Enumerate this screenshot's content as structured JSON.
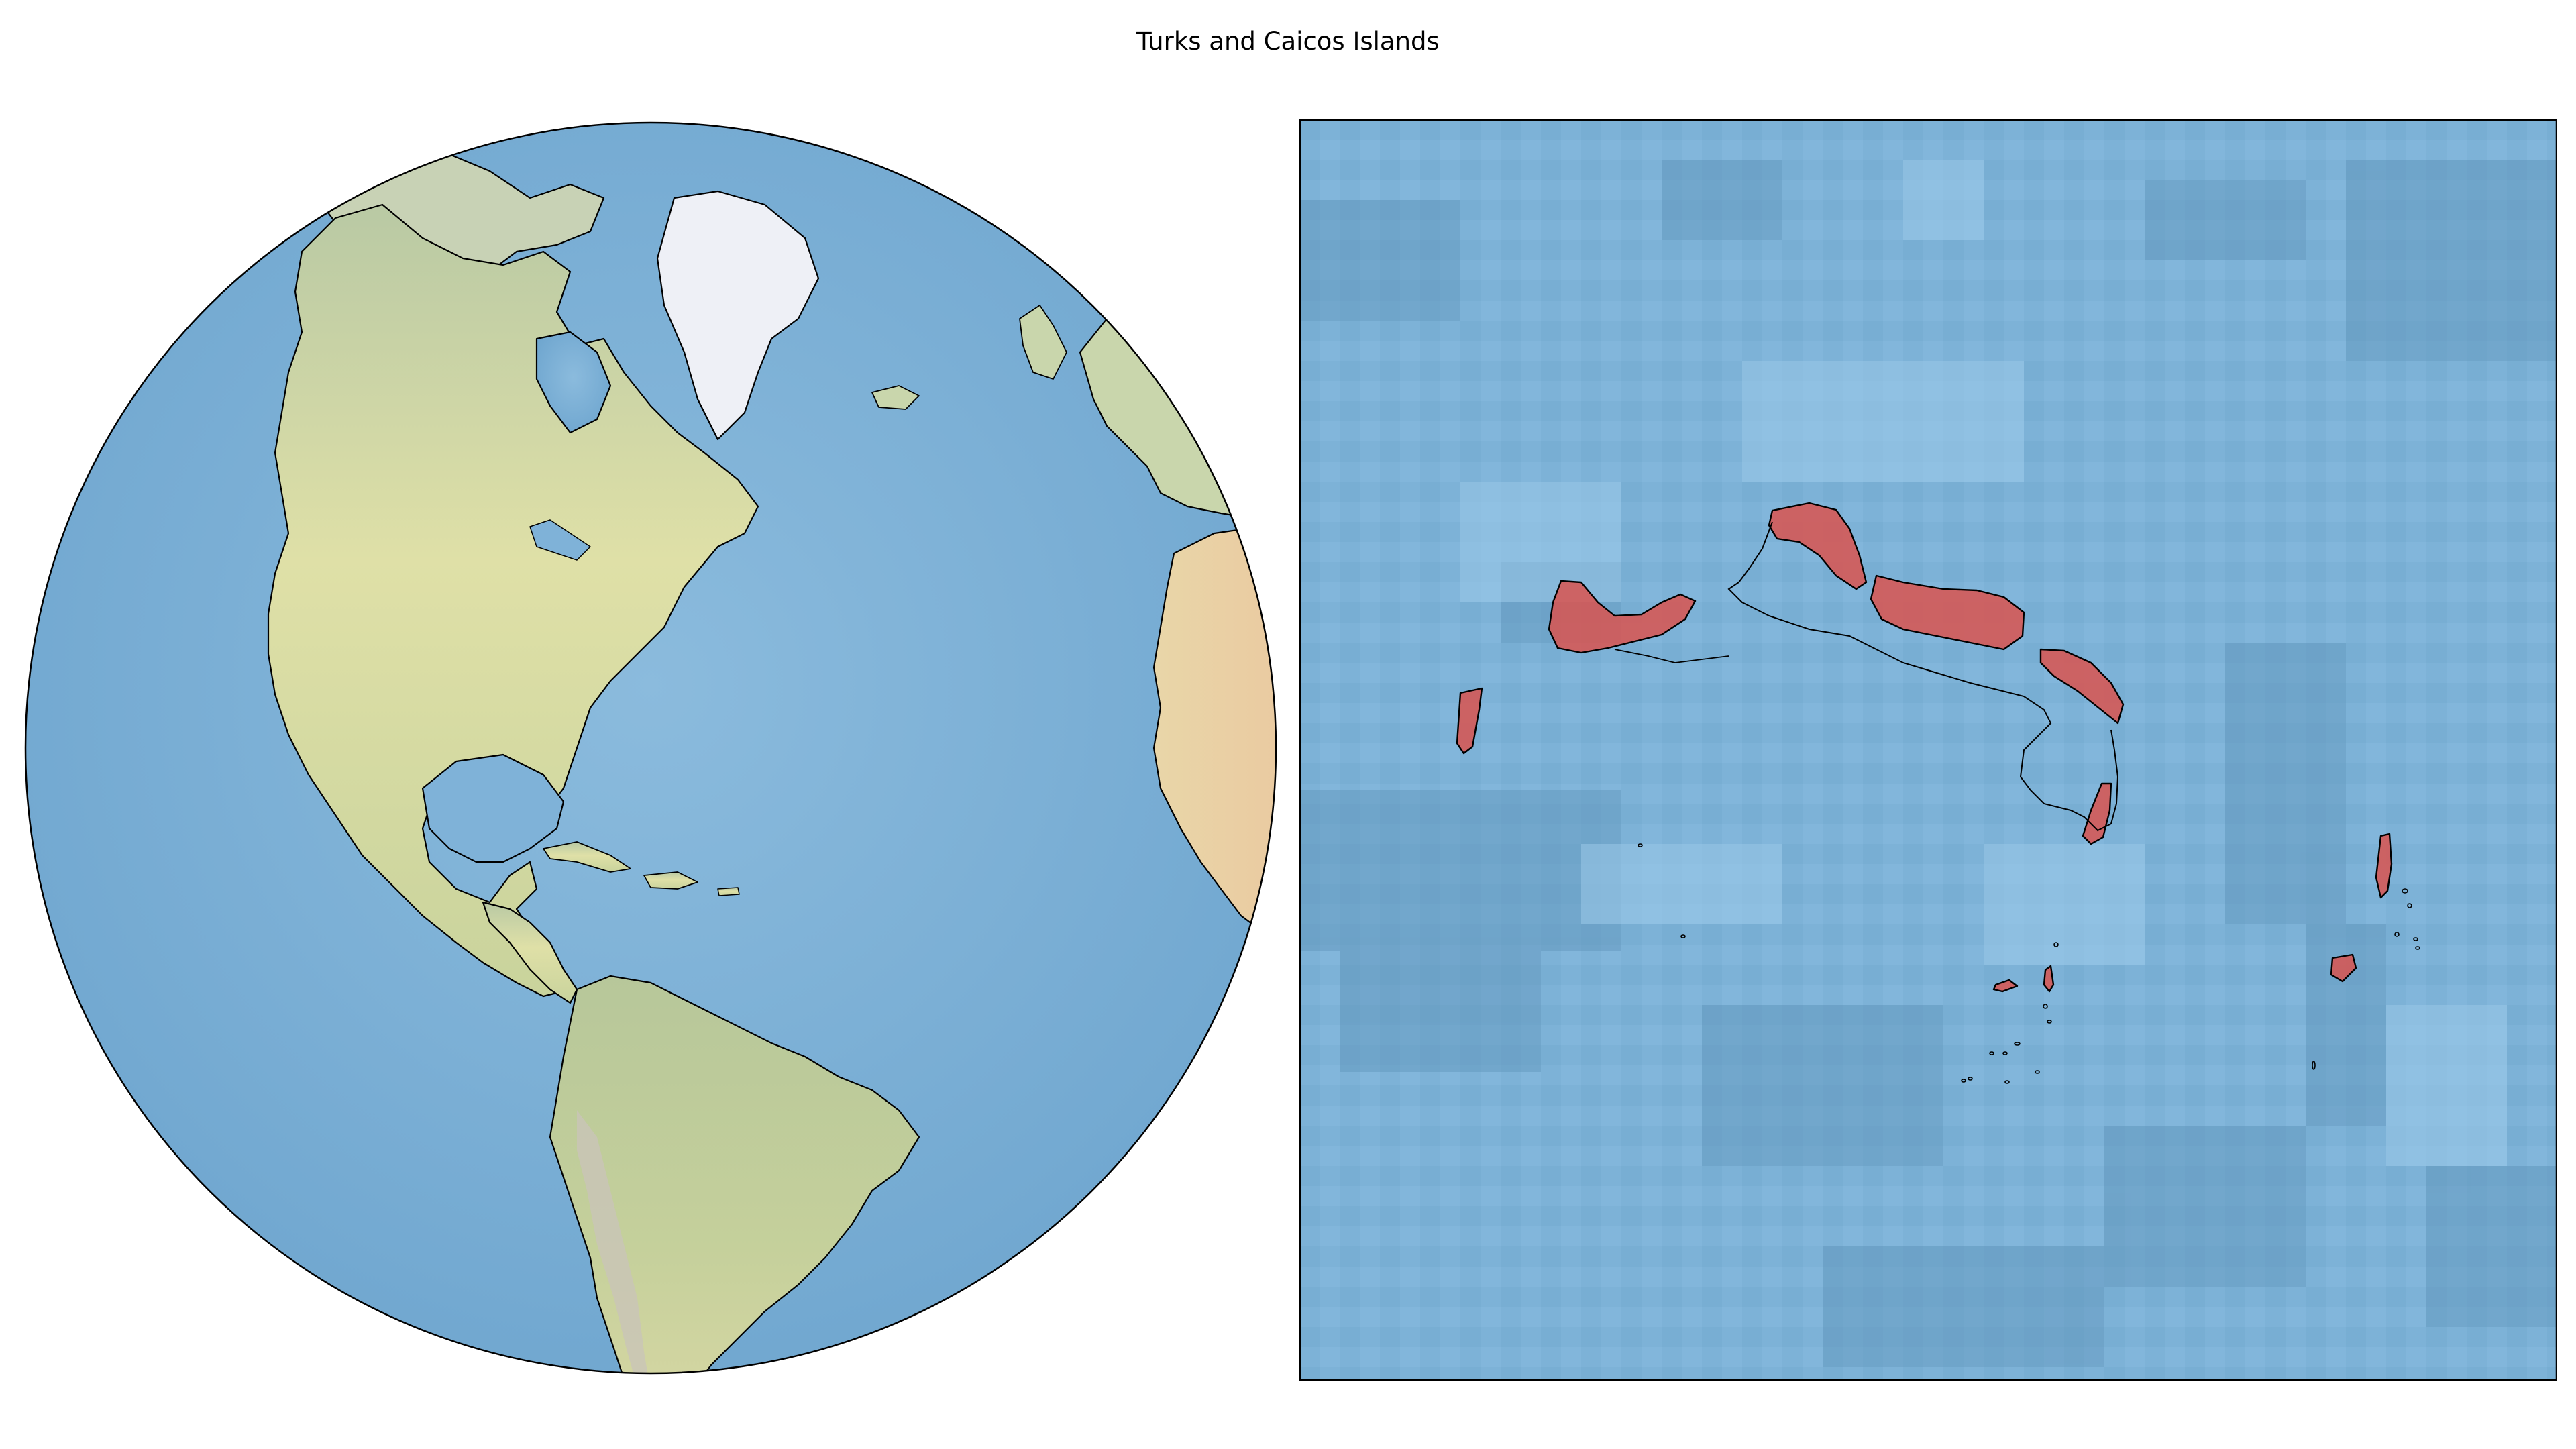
{
  "figure": {
    "title": "Turks and Caicos Islands"
  },
  "globe_map": {
    "projection": "orthographic",
    "centered_on": "Americas / Atlantic",
    "ocean_color": "#7fb2d8",
    "land_color": "#cfd9a0",
    "ice_color": "#eef0f6",
    "coastline_color": "#000000"
  },
  "zoom_map": {
    "region": "Turks and Caicos Islands",
    "ocean_color": "#7fb2d8",
    "highlight_color": "#d9534f",
    "coastline_color": "#000000",
    "frame_color": "#000000"
  }
}
